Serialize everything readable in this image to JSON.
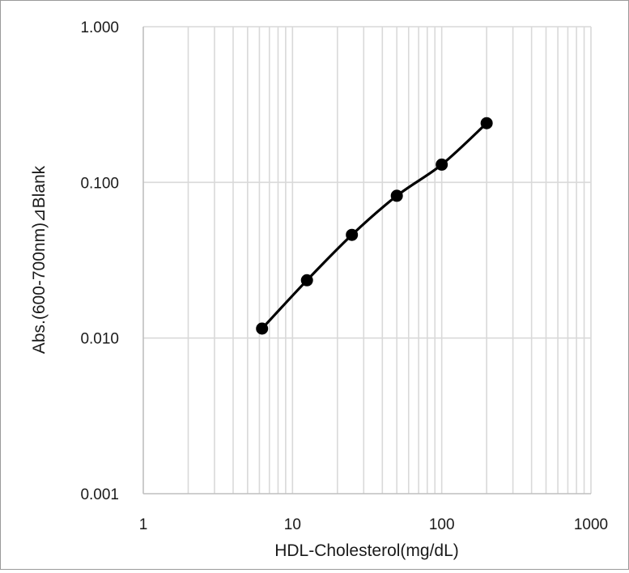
{
  "chart_data": {
    "type": "line",
    "title": "",
    "xlabel": "HDL-Cholesterol(mg/dL)",
    "ylabel": "Abs.(600-700nm)⊿Blank",
    "x_scale": "log",
    "y_scale": "log",
    "xlim": [
      1,
      1000
    ],
    "ylim": [
      0.001,
      1
    ],
    "x_tick_labels": [
      "1",
      "10",
      "100",
      "1000"
    ],
    "y_tick_labels": [
      "0.001",
      "0.010",
      "0.100",
      "1.000"
    ],
    "grid": true,
    "legend": "none",
    "marker": "circle",
    "line_color": "#000000",
    "grid_color": "#d9d9d9",
    "series": [
      {
        "x": [
          6.25,
          12.5,
          25,
          50,
          100,
          200
        ],
        "y": [
          0.0115,
          0.0235,
          0.046,
          0.082,
          0.13,
          0.24
        ]
      }
    ]
  }
}
